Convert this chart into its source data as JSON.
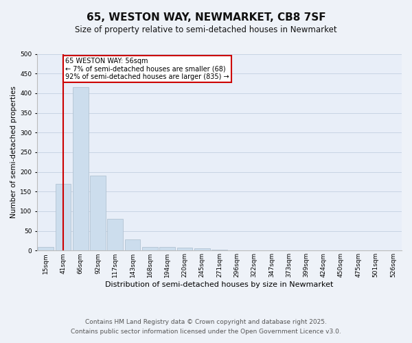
{
  "title": "65, WESTON WAY, NEWMARKET, CB8 7SF",
  "subtitle": "Size of property relative to semi-detached houses in Newmarket",
  "xlabel": "Distribution of semi-detached houses by size in Newmarket",
  "ylabel": "Number of semi-detached properties",
  "categories": [
    "15sqm",
    "41sqm",
    "66sqm",
    "92sqm",
    "117sqm",
    "143sqm",
    "168sqm",
    "194sqm",
    "220sqm",
    "245sqm",
    "271sqm",
    "296sqm",
    "322sqm",
    "347sqm",
    "373sqm",
    "399sqm",
    "424sqm",
    "450sqm",
    "475sqm",
    "501sqm",
    "526sqm"
  ],
  "values": [
    10,
    170,
    415,
    190,
    80,
    28,
    10,
    10,
    7,
    5,
    2,
    1,
    1,
    0,
    0,
    0,
    0,
    0,
    0,
    0,
    0
  ],
  "bar_color": "#ccdded",
  "bar_edge_color": "#aabccc",
  "vline_x": 1.0,
  "vline_color": "#cc0000",
  "vline_label": "65 WESTON WAY: 56sqm",
  "annotation_line2": "← 7% of semi-detached houses are smaller (68)",
  "annotation_line3": "92% of semi-detached houses are larger (835) →",
  "annotation_box_color": "#cc0000",
  "annotation_bg": "#ffffff",
  "ylim": [
    0,
    500
  ],
  "yticks": [
    0,
    50,
    100,
    150,
    200,
    250,
    300,
    350,
    400,
    450,
    500
  ],
  "grid_color": "#c8d4e4",
  "background_color": "#e8eef8",
  "fig_background": "#eef2f8",
  "footer_line1": "Contains HM Land Registry data © Crown copyright and database right 2025.",
  "footer_line2": "Contains public sector information licensed under the Open Government Licence v3.0.",
  "title_fontsize": 11,
  "subtitle_fontsize": 8.5,
  "xlabel_fontsize": 8,
  "ylabel_fontsize": 7.5,
  "tick_fontsize": 6.5,
  "footer_fontsize": 6.5,
  "annot_fontsize": 7
}
